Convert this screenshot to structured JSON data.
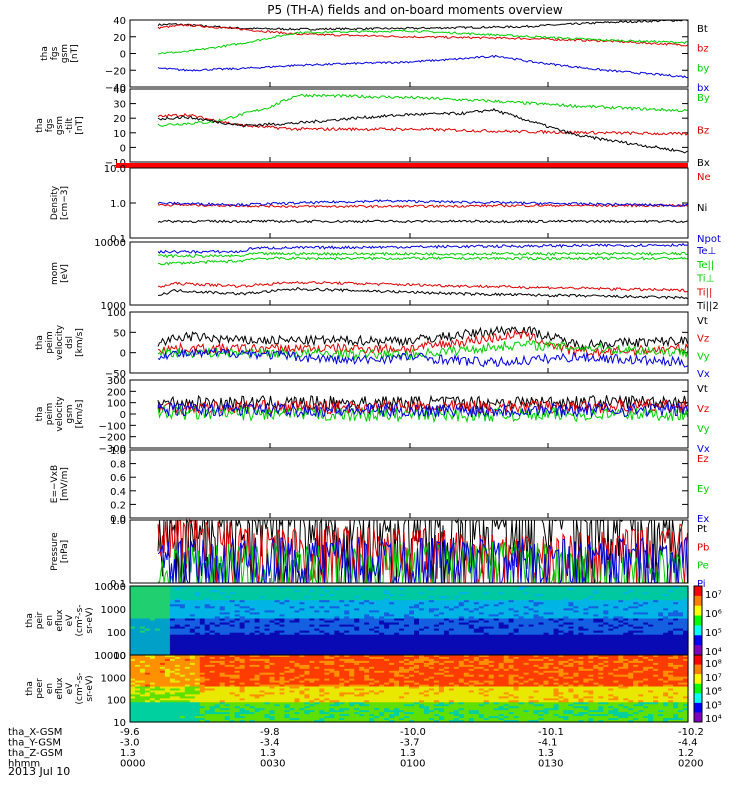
{
  "title": "P5 (TH-A) fields and on-board moments overview",
  "colors": {
    "black": "#000000",
    "red": "#e00000",
    "green": "#00d000",
    "blue": "#0000e0",
    "frame": "#000000"
  },
  "chart_data": [
    {
      "id": "fgs",
      "type": "line",
      "ylabel": [
        "tha",
        "fgs",
        "gsm",
        "[nT]"
      ],
      "ylim": [
        -40,
        40
      ],
      "yticks": [
        "40",
        "20",
        "0",
        "−20",
        "−40"
      ],
      "series": [
        {
          "name": "Bt",
          "color": "black",
          "shape": [
            [
              0.04,
              34
            ],
            [
              0.08,
              35
            ],
            [
              0.2,
              30
            ],
            [
              0.3,
              29
            ],
            [
              0.5,
              30
            ],
            [
              0.7,
              32
            ],
            [
              0.85,
              37
            ],
            [
              1,
              40
            ]
          ]
        },
        {
          "name": "bz",
          "color": "red",
          "shape": [
            [
              0.04,
              30
            ],
            [
              0.1,
              34
            ],
            [
              0.2,
              29
            ],
            [
              0.3,
              23
            ],
            [
              0.5,
              20
            ],
            [
              0.7,
              18
            ],
            [
              0.85,
              15
            ],
            [
              1,
              10
            ]
          ]
        },
        {
          "name": "by",
          "color": "green",
          "shape": [
            [
              0.04,
              0
            ],
            [
              0.1,
              2
            ],
            [
              0.2,
              12
            ],
            [
              0.3,
              25
            ],
            [
              0.5,
              27
            ],
            [
              0.6,
              24
            ],
            [
              0.85,
              16
            ],
            [
              1,
              13
            ]
          ]
        },
        {
          "name": "bx",
          "color": "blue",
          "shape": [
            [
              0.04,
              -17
            ],
            [
              0.1,
              -20
            ],
            [
              0.2,
              -18
            ],
            [
              0.3,
              -14
            ],
            [
              0.5,
              -10
            ],
            [
              0.58,
              -7
            ],
            [
              0.66,
              -3
            ],
            [
              0.72,
              -10
            ],
            [
              0.85,
              -20
            ],
            [
              1,
              -28
            ]
          ]
        }
      ]
    },
    {
      "id": "fgs-tilt",
      "type": "line",
      "ylabel": [
        "tha",
        "fgs",
        "gsm",
        "-tilt",
        "[nT]"
      ],
      "ylim": [
        -20,
        40
      ],
      "yticks": [
        "40",
        "30",
        "20",
        "10",
        "0",
        "−10"
      ],
      "series": [
        {
          "name": "By",
          "color": "green",
          "shape": [
            [
              0.04,
              10
            ],
            [
              0.15,
              13
            ],
            [
              0.25,
              25
            ],
            [
              0.3,
              35
            ],
            [
              0.5,
              33
            ],
            [
              0.65,
              30
            ],
            [
              0.8,
              26
            ],
            [
              1,
              22
            ]
          ]
        },
        {
          "name": "Bz",
          "color": "red",
          "shape": [
            [
              0.04,
              17
            ],
            [
              0.1,
              19
            ],
            [
              0.2,
              10
            ],
            [
              0.3,
              7
            ],
            [
              0.5,
              7
            ],
            [
              0.6,
              6
            ],
            [
              0.7,
              5
            ],
            [
              0.85,
              4
            ],
            [
              1,
              3
            ]
          ]
        },
        {
          "name": "Bx",
          "color": "black",
          "shape": [
            [
              0.04,
              15
            ],
            [
              0.1,
              17
            ],
            [
              0.2,
              10
            ],
            [
              0.3,
              12
            ],
            [
              0.4,
              16
            ],
            [
              0.5,
              19
            ],
            [
              0.6,
              20
            ],
            [
              0.65,
              23
            ],
            [
              0.7,
              16
            ],
            [
              0.8,
              2
            ],
            [
              0.9,
              -5
            ],
            [
              1,
              -12
            ]
          ]
        }
      ]
    },
    {
      "id": "density",
      "type": "line",
      "ylabel": [
        "Density",
        "[cm−3]"
      ],
      "ylim": [
        0.1,
        10
      ],
      "log": true,
      "yticks": [
        "10.0",
        "1.0",
        "0.1"
      ],
      "series": [
        {
          "name": "Ne",
          "color": "red",
          "shape": [
            [
              0.04,
              0.9
            ],
            [
              0.3,
              0.8
            ],
            [
              0.5,
              0.8
            ],
            [
              0.7,
              0.85
            ],
            [
              1,
              0.85
            ]
          ]
        },
        {
          "name": "Ni",
          "color": "black",
          "shape": [
            [
              0.04,
              0.3
            ],
            [
              0.5,
              0.3
            ],
            [
              1,
              0.3
            ]
          ]
        },
        {
          "name": "Npot",
          "color": "blue",
          "shape": [
            [
              0.04,
              1.0
            ],
            [
              0.2,
              0.9
            ],
            [
              0.45,
              1.15
            ],
            [
              0.7,
              1.0
            ],
            [
              1,
              0.85
            ]
          ]
        }
      ]
    },
    {
      "id": "temp",
      "type": "line",
      "ylabel": [
        "mom",
        "[eV]"
      ],
      "ylim": [
        1000,
        10000
      ],
      "log": true,
      "yticks": [
        "10000",
        "1000"
      ],
      "series": [
        {
          "name": "Te⊥",
          "color": "blue",
          "shape": [
            [
              0.04,
              7000
            ],
            [
              0.2,
              7000
            ],
            [
              0.22,
              8000
            ],
            [
              0.6,
              8500
            ],
            [
              1,
              9000
            ]
          ]
        },
        {
          "name": "Te||",
          "color": "green",
          "shape": [
            [
              0.04,
              6000
            ],
            [
              0.2,
              6000
            ],
            [
              0.22,
              6500
            ],
            [
              0.6,
              6500
            ],
            [
              1,
              6500
            ]
          ]
        },
        {
          "name": "Ti⊥",
          "color": "green",
          "shape": [
            [
              0.04,
              4500
            ],
            [
              0.2,
              5000
            ],
            [
              0.22,
              5500
            ],
            [
              0.6,
              5500
            ],
            [
              1,
              5500
            ]
          ]
        },
        {
          "name": "Ti||",
          "color": "red",
          "shape": [
            [
              0.04,
              1800
            ],
            [
              0.08,
              2200
            ],
            [
              0.2,
              2000
            ],
            [
              0.3,
              2300
            ],
            [
              0.6,
              2000
            ],
            [
              1,
              1700
            ]
          ]
        },
        {
          "name": "Ti||2",
          "color": "black",
          "shape": [
            [
              0.04,
              1300
            ],
            [
              0.08,
              1700
            ],
            [
              0.2,
              1500
            ],
            [
              0.3,
              1800
            ],
            [
              0.6,
              1500
            ],
            [
              1,
              1300
            ]
          ]
        }
      ]
    },
    {
      "id": "velocity",
      "type": "line",
      "ylabel": [
        "tha",
        "peim",
        "velocity",
        "dsl",
        "[km/s]"
      ],
      "ylim": [
        -50,
        100
      ],
      "yticks": [
        "100",
        "50",
        "0",
        "−50"
      ],
      "series": [
        {
          "name": "Vt",
          "color": "black",
          "shape": [
            [
              0.04,
              20
            ],
            [
              0.1,
              40
            ],
            [
              0.2,
              30
            ],
            [
              0.5,
              30
            ],
            [
              0.7,
              60
            ],
            [
              0.8,
              20
            ],
            [
              1,
              30
            ]
          ]
        },
        {
          "name": "Vz",
          "color": "red",
          "shape": [
            [
              0.04,
              10
            ],
            [
              0.2,
              10
            ],
            [
              0.5,
              10
            ],
            [
              0.7,
              45
            ],
            [
              0.8,
              0
            ],
            [
              1,
              10
            ]
          ]
        },
        {
          "name": "Vy",
          "color": "green",
          "shape": [
            [
              0.04,
              0
            ],
            [
              0.2,
              0
            ],
            [
              0.5,
              -5
            ],
            [
              0.7,
              20
            ],
            [
              1,
              0
            ]
          ]
        },
        {
          "name": "Vx",
          "color": "blue",
          "shape": [
            [
              0.04,
              -5
            ],
            [
              0.2,
              0
            ],
            [
              0.4,
              -20
            ],
            [
              0.5,
              -10
            ],
            [
              0.65,
              -25
            ],
            [
              0.8,
              -10
            ],
            [
              1,
              -25
            ]
          ]
        }
      ]
    },
    {
      "id": "velocity-gsm",
      "type": "line",
      "ylabel": [
        "tha",
        "peim",
        "velocity",
        "gsm",
        "[km/s]"
      ],
      "ylim": [
        -300,
        300
      ],
      "yticks": [
        "300",
        "200",
        "100",
        "0",
        "−100",
        "−200",
        "−300"
      ],
      "series": [
        {
          "name": "Vt",
          "color": "black",
          "shape": [
            [
              0.04,
              100
            ],
            [
              0.5,
              100
            ],
            [
              1,
              110
            ]
          ]
        },
        {
          "name": "Vz",
          "color": "red",
          "shape": [
            [
              0.04,
              60
            ],
            [
              0.5,
              60
            ],
            [
              1,
              70
            ]
          ]
        },
        {
          "name": "Vy",
          "color": "green",
          "shape": [
            [
              0.04,
              10
            ],
            [
              0.5,
              -10
            ],
            [
              1,
              0
            ]
          ]
        },
        {
          "name": "Vx",
          "color": "blue",
          "shape": [
            [
              0.04,
              40
            ],
            [
              0.5,
              30
            ],
            [
              1,
              40
            ]
          ]
        }
      ]
    },
    {
      "id": "efield",
      "type": "line",
      "ylabel": [
        "E=−VxB",
        "[mV/m]"
      ],
      "ylim": [
        0,
        1
      ],
      "yticks": [
        "1.0",
        "0.8",
        "0.6",
        "0.4",
        "0.2",
        "0.0"
      ],
      "series": [
        {
          "name": "Ez",
          "color": "red",
          "shape": []
        },
        {
          "name": "Ey",
          "color": "green",
          "shape": []
        },
        {
          "name": "Ex",
          "color": "blue",
          "shape": []
        }
      ]
    },
    {
      "id": "pressure",
      "type": "line",
      "ylabel": [
        "Pressure",
        "[nPa]"
      ],
      "ylim": [
        0.1,
        1
      ],
      "log": true,
      "yticks": [
        "1.0",
        "0.1"
      ],
      "series": [
        {
          "name": "Pt",
          "color": "black",
          "shape": [
            [
              0.04,
              0.8
            ],
            [
              0.1,
              0.95
            ],
            [
              0.5,
              0.9
            ],
            [
              1,
              1.0
            ]
          ]
        },
        {
          "name": "Pb",
          "color": "red",
          "shape": [
            [
              0.04,
              0.45
            ],
            [
              0.1,
              0.55
            ],
            [
              0.2,
              0.4
            ],
            [
              0.5,
              0.35
            ],
            [
              0.7,
              0.25
            ],
            [
              0.85,
              0.3
            ],
            [
              1,
              0.4
            ]
          ]
        },
        {
          "name": "Pe",
          "color": "green",
          "shape": [
            [
              0.04,
              0.15
            ],
            [
              0.2,
              0.2
            ],
            [
              0.5,
              0.2
            ],
            [
              0.7,
              0.22
            ],
            [
              0.85,
              0.16
            ],
            [
              1,
              0.15
            ]
          ]
        },
        {
          "name": "Pi",
          "color": "blue",
          "shape": [
            [
              0.04,
              0.2
            ],
            [
              0.2,
              0.24
            ],
            [
              0.5,
              0.25
            ],
            [
              0.7,
              0.23
            ],
            [
              1,
              0.25
            ]
          ]
        }
      ]
    },
    {
      "id": "peir",
      "type": "heatmap",
      "ylabel": [
        "tha",
        "peir",
        "en",
        "eflux",
        "eV",
        "(cm²-s-",
        "sr-eV)"
      ],
      "ylim": [
        10,
        10000
      ],
      "yticks": [
        "10000",
        "1000",
        "100",
        "10"
      ],
      "colorbar": {
        "ticks": [
          "10⁷",
          "10⁶",
          "10⁵",
          "10⁴"
        ]
      }
    },
    {
      "id": "peer",
      "type": "heatmap",
      "ylabel": [
        "tha",
        "peer",
        "en",
        "eflux",
        "eV",
        "(cm²-s-",
        "sr-eV)"
      ],
      "ylim": [
        10,
        10000
      ],
      "yticks": [
        "10000",
        "1000",
        "100",
        "10"
      ],
      "colorbar": {
        "ticks": [
          "10⁸",
          "10⁷",
          "10⁶",
          "10⁵",
          "10⁴"
        ]
      }
    }
  ],
  "xaxis": {
    "tick_labels": [
      "0000",
      "0030",
      "0100",
      "0130",
      "0200"
    ],
    "rows": [
      {
        "label": "tha_X-GSM",
        "values": [
          "-9.6",
          "-9.8",
          "-10.0",
          "-10.1",
          "-10.2"
        ]
      },
      {
        "label": "tha_Y-GSM",
        "values": [
          "-3.0",
          "-3.4",
          "-3.7",
          "-4.1",
          "-4.4"
        ]
      },
      {
        "label": "tha_Z-GSM",
        "values": [
          "1.3",
          "1.3",
          "1.3",
          "1.3",
          "1.2"
        ]
      },
      {
        "label": "hhmm",
        "values": [
          "0000",
          "0030",
          "0100",
          "0130",
          "0200"
        ]
      }
    ],
    "date": "2013 Jul 10"
  }
}
